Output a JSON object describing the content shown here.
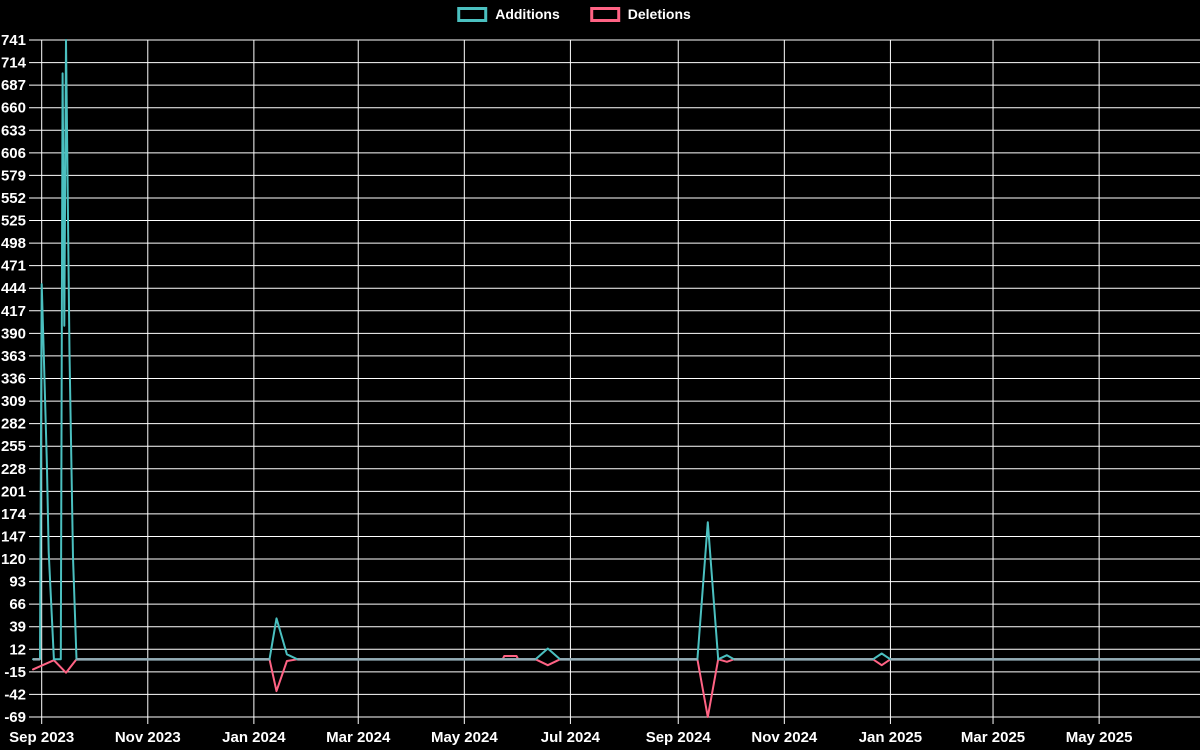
{
  "legend": {
    "additions_label": "Additions",
    "deletions_label": "Deletions"
  },
  "colors": {
    "background": "#000000",
    "grid": "#ffffff",
    "text": "#ffffff",
    "additions": "#4bc0c0",
    "deletions": "#ff6384",
    "zero_baseline_blend": "#93acb6"
  },
  "chart_data": {
    "type": "line",
    "title": "",
    "xlabel": "",
    "ylabel": "",
    "legend_position": "top-center",
    "grid": true,
    "y_axis": {
      "min": -69,
      "max": 741,
      "step": 27
    },
    "x_axis": {
      "start_date": "2023-08-27",
      "end_date": "2025-06-28",
      "ticks": [
        {
          "label": "Sep 2023",
          "date": "2023-09-01"
        },
        {
          "label": "Nov 2023",
          "date": "2023-11-01"
        },
        {
          "label": "Jan 2024",
          "date": "2024-01-01"
        },
        {
          "label": "Mar 2024",
          "date": "2024-03-01"
        },
        {
          "label": "May 2024",
          "date": "2024-05-01"
        },
        {
          "label": "Jul 2024",
          "date": "2024-07-01"
        },
        {
          "label": "Sep 2024",
          "date": "2024-09-01"
        },
        {
          "label": "Nov 2024",
          "date": "2024-11-01"
        },
        {
          "label": "Jan 2025",
          "date": "2025-01-01"
        },
        {
          "label": "Mar 2025",
          "date": "2025-03-01"
        },
        {
          "label": "May 2025",
          "date": "2025-05-01"
        }
      ]
    },
    "series": [
      {
        "name": "Deletions",
        "color": "#ff6384",
        "points": [
          [
            "2023-08-27",
            -12
          ],
          [
            "2023-09-08",
            -1
          ],
          [
            "2023-09-15",
            -16
          ],
          [
            "2023-09-21",
            0
          ],
          [
            "2024-01-10",
            0
          ],
          [
            "2024-01-14",
            -38
          ],
          [
            "2024-01-20",
            -2
          ],
          [
            "2024-01-26",
            0
          ],
          [
            "2024-05-23",
            0
          ],
          [
            "2024-05-24",
            4
          ],
          [
            "2024-05-31",
            4
          ],
          [
            "2024-06-01",
            0
          ],
          [
            "2024-06-11",
            0
          ],
          [
            "2024-06-18",
            -7
          ],
          [
            "2024-06-25",
            0
          ],
          [
            "2024-09-12",
            0
          ],
          [
            "2024-09-18",
            -69
          ],
          [
            "2024-09-24",
            0
          ],
          [
            "2024-09-29",
            -3
          ],
          [
            "2024-10-03",
            0
          ],
          [
            "2024-12-22",
            0
          ],
          [
            "2024-12-27",
            -7
          ],
          [
            "2025-01-01",
            0
          ],
          [
            "2025-06-28",
            0
          ]
        ]
      },
      {
        "name": "Additions",
        "color": "#4bc0c0",
        "points": [
          [
            "2023-08-27",
            0
          ],
          [
            "2023-08-31",
            0
          ],
          [
            "2023-09-01",
            449
          ],
          [
            "2023-09-02",
            381
          ],
          [
            "2023-09-04",
            233
          ],
          [
            "2023-09-05",
            128
          ],
          [
            "2023-09-08",
            0
          ],
          [
            "2023-09-12",
            0
          ],
          [
            "2023-09-13",
            701
          ],
          [
            "2023-09-14",
            399
          ],
          [
            "2023-09-15",
            741
          ],
          [
            "2023-09-17",
            366
          ],
          [
            "2023-09-19",
            122
          ],
          [
            "2023-09-21",
            0
          ],
          [
            "2024-01-10",
            0
          ],
          [
            "2024-01-14",
            49
          ],
          [
            "2024-01-20",
            6
          ],
          [
            "2024-01-26",
            0
          ],
          [
            "2024-06-11",
            0
          ],
          [
            "2024-06-18",
            13
          ],
          [
            "2024-06-25",
            0
          ],
          [
            "2024-09-12",
            0
          ],
          [
            "2024-09-18",
            164
          ],
          [
            "2024-09-24",
            0
          ],
          [
            "2024-09-29",
            5
          ],
          [
            "2024-10-03",
            0
          ],
          [
            "2024-12-22",
            0
          ],
          [
            "2024-12-27",
            7
          ],
          [
            "2025-01-01",
            0
          ],
          [
            "2025-06-28",
            0
          ]
        ]
      }
    ],
    "zero_overlap_segments": [
      [
        "2023-08-27",
        "2023-08-31"
      ],
      [
        "2023-09-21",
        "2024-01-10"
      ],
      [
        "2024-01-26",
        "2024-06-11"
      ],
      [
        "2024-06-25",
        "2024-09-12"
      ],
      [
        "2024-10-03",
        "2024-12-22"
      ],
      [
        "2025-01-01",
        "2025-06-28"
      ]
    ]
  }
}
